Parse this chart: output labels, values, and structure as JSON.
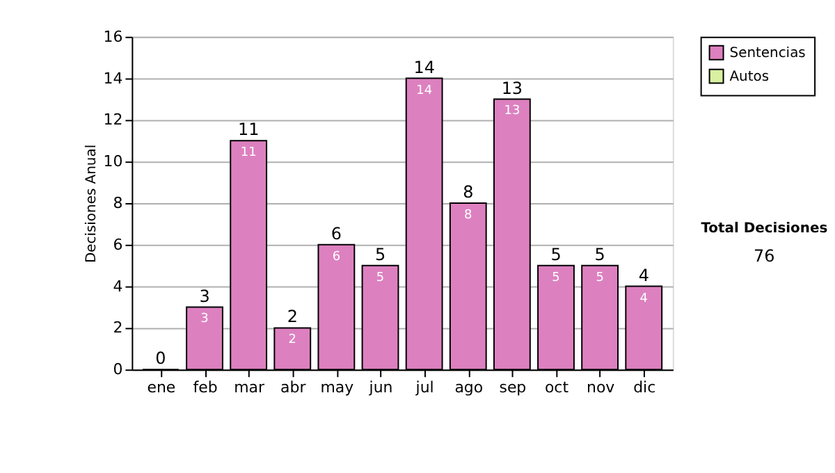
{
  "chart_data": {
    "type": "bar",
    "ylabel": "Decisiones Anual",
    "categories": [
      "ene",
      "feb",
      "mar",
      "abr",
      "may",
      "jun",
      "jul",
      "ago",
      "sep",
      "oct",
      "nov",
      "dic"
    ],
    "stacked": true,
    "series": [
      {
        "name": "Sentencias",
        "color": "#dd80c0",
        "values": [
          0,
          3,
          11,
          2,
          6,
          5,
          14,
          8,
          13,
          5,
          5,
          4
        ],
        "value_labels": [
          null,
          "3",
          "11",
          "2",
          "6",
          "5",
          "14",
          "8",
          "13",
          "5",
          "5",
          "4"
        ]
      },
      {
        "name": "Autos",
        "color": "#d8f0a0",
        "values": [
          0,
          0,
          0,
          0,
          0,
          0,
          0,
          0,
          0,
          0,
          0,
          0
        ]
      }
    ],
    "totals": [
      "0",
      "3",
      "11",
      "2",
      "6",
      "5",
      "14",
      "8",
      "13",
      "5",
      "5",
      "4"
    ],
    "ylim": [
      0,
      16
    ],
    "yticks": [
      0,
      2,
      4,
      6,
      8,
      10,
      12,
      14,
      16
    ],
    "grid": "y",
    "legend": "right",
    "annotations": [
      "Total Decisiones",
      "76"
    ]
  }
}
